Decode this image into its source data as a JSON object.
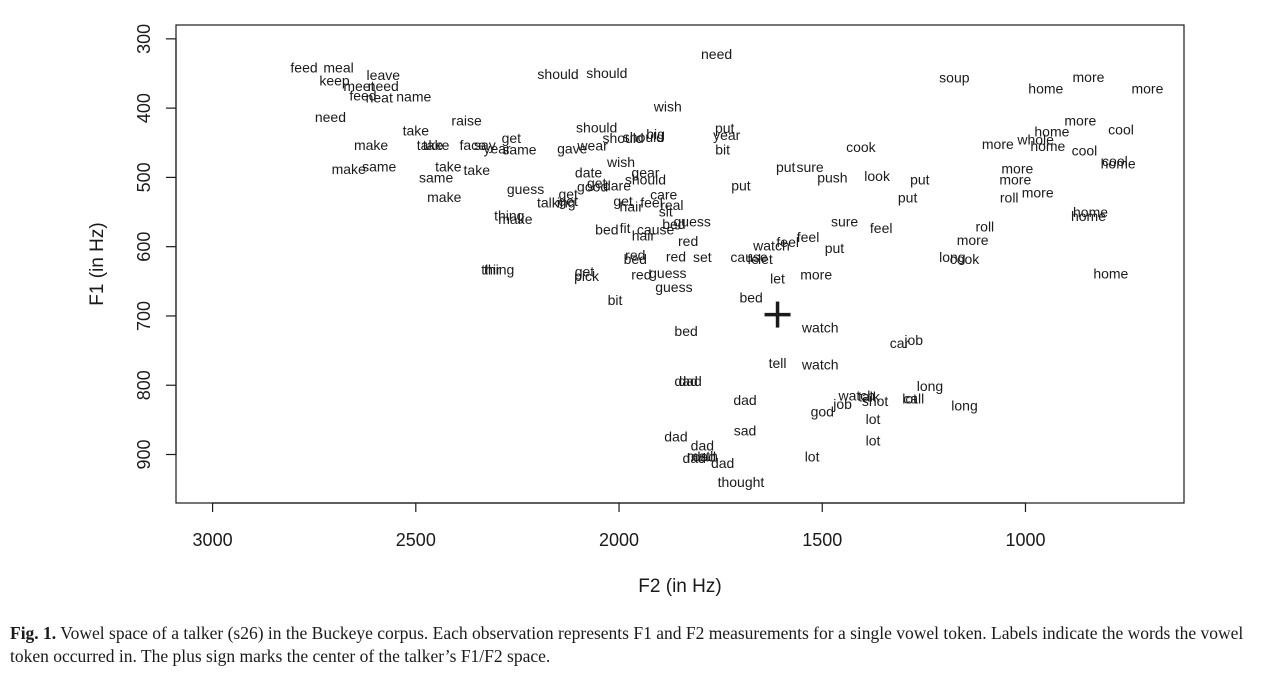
{
  "chart_data": {
    "type": "scatter",
    "xlabel": "F2 (in Hz)",
    "ylabel": "F1 (in Hz)",
    "xlim": [
      3090,
      610
    ],
    "ylim": [
      970,
      280
    ],
    "xticks": [
      3000,
      2500,
      2000,
      1500,
      1000
    ],
    "yticks": [
      300,
      400,
      500,
      600,
      700,
      800,
      900
    ],
    "center": {
      "x": 1610,
      "y": 698,
      "marker": "+"
    },
    "points": [
      {
        "w": "feed",
        "x": 2775,
        "y": 341
      },
      {
        "w": "meal",
        "x": 2690,
        "y": 341
      },
      {
        "w": "leave",
        "x": 2580,
        "y": 352
      },
      {
        "w": "keep",
        "x": 2700,
        "y": 360
      },
      {
        "w": "meet",
        "x": 2640,
        "y": 368
      },
      {
        "w": "need",
        "x": 2580,
        "y": 368
      },
      {
        "w": "feed",
        "x": 2630,
        "y": 382
      },
      {
        "w": "neat",
        "x": 2590,
        "y": 385
      },
      {
        "w": "name",
        "x": 2505,
        "y": 383
      },
      {
        "w": "need",
        "x": 2710,
        "y": 413
      },
      {
        "w": "raise",
        "x": 2375,
        "y": 418
      },
      {
        "w": "should",
        "x": 2150,
        "y": 351
      },
      {
        "w": "should",
        "x": 2030,
        "y": 349
      },
      {
        "w": "need",
        "x": 1760,
        "y": 322
      },
      {
        "w": "soup",
        "x": 1175,
        "y": 356
      },
      {
        "w": "home",
        "x": 950,
        "y": 372
      },
      {
        "w": "more",
        "x": 845,
        "y": 355
      },
      {
        "w": "more",
        "x": 700,
        "y": 372
      },
      {
        "w": "wish",
        "x": 1880,
        "y": 398
      },
      {
        "w": "take",
        "x": 2500,
        "y": 432
      },
      {
        "w": "get",
        "x": 2265,
        "y": 443
      },
      {
        "w": "make",
        "x": 2610,
        "y": 453
      },
      {
        "w": "take",
        "x": 2465,
        "y": 453
      },
      {
        "w": "take",
        "x": 2450,
        "y": 453
      },
      {
        "w": "face",
        "x": 2360,
        "y": 453
      },
      {
        "w": "say",
        "x": 2330,
        "y": 453
      },
      {
        "w": "year",
        "x": 2300,
        "y": 458
      },
      {
        "w": "same",
        "x": 2245,
        "y": 460
      },
      {
        "w": "should",
        "x": 2055,
        "y": 428
      },
      {
        "w": "big",
        "x": 1910,
        "y": 437
      },
      {
        "w": "should",
        "x": 1990,
        "y": 443
      },
      {
        "w": "should",
        "x": 1940,
        "y": 442
      },
      {
        "w": "wear",
        "x": 2065,
        "y": 454
      },
      {
        "w": "gave",
        "x": 2115,
        "y": 458
      },
      {
        "w": "wish",
        "x": 1995,
        "y": 478
      },
      {
        "w": "put",
        "x": 1740,
        "y": 429
      },
      {
        "w": "year",
        "x": 1735,
        "y": 439
      },
      {
        "w": "bit",
        "x": 1745,
        "y": 460
      },
      {
        "w": "cook",
        "x": 1405,
        "y": 456
      },
      {
        "w": "more",
        "x": 1068,
        "y": 452
      },
      {
        "w": "more",
        "x": 865,
        "y": 418
      },
      {
        "w": "cool",
        "x": 765,
        "y": 431
      },
      {
        "w": "home",
        "x": 935,
        "y": 434
      },
      {
        "w": "whole",
        "x": 975,
        "y": 445
      },
      {
        "w": "home",
        "x": 945,
        "y": 455
      },
      {
        "w": "cool",
        "x": 855,
        "y": 461
      },
      {
        "w": "cool",
        "x": 780,
        "y": 476
      },
      {
        "w": "home",
        "x": 772,
        "y": 480
      },
      {
        "w": "make",
        "x": 2665,
        "y": 488
      },
      {
        "w": "same",
        "x": 2590,
        "y": 484
      },
      {
        "w": "take",
        "x": 2420,
        "y": 484
      },
      {
        "w": "take",
        "x": 2350,
        "y": 489
      },
      {
        "w": "same",
        "x": 2450,
        "y": 500
      },
      {
        "w": "make",
        "x": 2430,
        "y": 528
      },
      {
        "w": "guess",
        "x": 2230,
        "y": 517
      },
      {
        "w": "date",
        "x": 2075,
        "y": 493
      },
      {
        "w": "gear",
        "x": 1935,
        "y": 493
      },
      {
        "w": "should",
        "x": 1935,
        "y": 503
      },
      {
        "w": "get",
        "x": 2055,
        "y": 508
      },
      {
        "w": "good",
        "x": 2065,
        "y": 513
      },
      {
        "w": "dare",
        "x": 2005,
        "y": 512
      },
      {
        "w": "care",
        "x": 1890,
        "y": 525
      },
      {
        "w": "put",
        "x": 1590,
        "y": 485
      },
      {
        "w": "sure",
        "x": 1530,
        "y": 485
      },
      {
        "w": "push",
        "x": 1475,
        "y": 500
      },
      {
        "w": "look",
        "x": 1365,
        "y": 498
      },
      {
        "w": "put",
        "x": 1260,
        "y": 503
      },
      {
        "w": "put",
        "x": 1700,
        "y": 512
      },
      {
        "w": "more",
        "x": 1020,
        "y": 487
      },
      {
        "w": "more",
        "x": 1025,
        "y": 503
      },
      {
        "w": "more",
        "x": 970,
        "y": 522
      },
      {
        "w": "roll",
        "x": 1040,
        "y": 529
      },
      {
        "w": "put",
        "x": 1290,
        "y": 529
      },
      {
        "w": "home",
        "x": 840,
        "y": 550
      },
      {
        "w": "home",
        "x": 845,
        "y": 556
      },
      {
        "w": "get",
        "x": 2125,
        "y": 524
      },
      {
        "w": "get",
        "x": 2125,
        "y": 534
      },
      {
        "w": "talk",
        "x": 2175,
        "y": 536
      },
      {
        "w": "ing",
        "x": 2130,
        "y": 536
      },
      {
        "w": "get",
        "x": 1990,
        "y": 534
      },
      {
        "w": "feel",
        "x": 1920,
        "y": 536
      },
      {
        "w": "real",
        "x": 1870,
        "y": 540
      },
      {
        "w": "hair",
        "x": 1970,
        "y": 542
      },
      {
        "w": "sit",
        "x": 1885,
        "y": 549
      },
      {
        "w": "bed",
        "x": 1865,
        "y": 567
      },
      {
        "w": "guess",
        "x": 1820,
        "y": 564
      },
      {
        "w": "thing",
        "x": 2270,
        "y": 555
      },
      {
        "w": "make",
        "x": 2255,
        "y": 560
      },
      {
        "w": "sure",
        "x": 1445,
        "y": 564
      },
      {
        "w": "feel",
        "x": 1355,
        "y": 573
      },
      {
        "w": "roll",
        "x": 1100,
        "y": 571
      },
      {
        "w": "bed",
        "x": 2030,
        "y": 575
      },
      {
        "w": "fit",
        "x": 1985,
        "y": 573
      },
      {
        "w": "cause",
        "x": 1910,
        "y": 575
      },
      {
        "w": "hair",
        "x": 1940,
        "y": 584
      },
      {
        "w": "feel",
        "x": 1535,
        "y": 586
      },
      {
        "w": "feel",
        "x": 1585,
        "y": 593
      },
      {
        "w": "watch",
        "x": 1625,
        "y": 598
      },
      {
        "w": "red",
        "x": 1830,
        "y": 592
      },
      {
        "w": "put",
        "x": 1470,
        "y": 602
      },
      {
        "w": "more",
        "x": 1130,
        "y": 590
      },
      {
        "w": "long",
        "x": 1180,
        "y": 615
      },
      {
        "w": "cook",
        "x": 1150,
        "y": 618
      },
      {
        "w": "home",
        "x": 790,
        "y": 639
      },
      {
        "w": "red",
        "x": 1960,
        "y": 612
      },
      {
        "w": "bed",
        "x": 1960,
        "y": 618
      },
      {
        "w": "red",
        "x": 1860,
        "y": 614
      },
      {
        "w": "set",
        "x": 1795,
        "y": 615
      },
      {
        "w": "cause",
        "x": 1680,
        "y": 615
      },
      {
        "w": "let",
        "x": 1640,
        "y": 618
      },
      {
        "w": "fe",
        "x": 1670,
        "y": 618
      },
      {
        "w": "thing",
        "x": 2295,
        "y": 633
      },
      {
        "w": "thir",
        "x": 2315,
        "y": 633
      },
      {
        "w": "get",
        "x": 2085,
        "y": 636
      },
      {
        "w": "pick",
        "x": 2080,
        "y": 642
      },
      {
        "w": "red",
        "x": 1945,
        "y": 640
      },
      {
        "w": "guess",
        "x": 1880,
        "y": 638
      },
      {
        "w": "guess",
        "x": 1865,
        "y": 658
      },
      {
        "w": "let",
        "x": 1610,
        "y": 646
      },
      {
        "w": "more",
        "x": 1515,
        "y": 640
      },
      {
        "w": "bit",
        "x": 2010,
        "y": 677
      },
      {
        "w": "bed",
        "x": 1675,
        "y": 673
      },
      {
        "w": "bed",
        "x": 1835,
        "y": 722
      },
      {
        "w": "watch",
        "x": 1505,
        "y": 717
      },
      {
        "w": "car",
        "x": 1310,
        "y": 739
      },
      {
        "w": "job",
        "x": 1275,
        "y": 735
      },
      {
        "w": "tell",
        "x": 1610,
        "y": 768
      },
      {
        "w": "watch",
        "x": 1505,
        "y": 770
      },
      {
        "w": "dad",
        "x": 1835,
        "y": 794
      },
      {
        "w": "dad",
        "x": 1825,
        "y": 794
      },
      {
        "w": "long",
        "x": 1235,
        "y": 801
      },
      {
        "w": "dad",
        "x": 1690,
        "y": 821
      },
      {
        "w": "watch",
        "x": 1415,
        "y": 815
      },
      {
        "w": "talk",
        "x": 1385,
        "y": 816
      },
      {
        "w": "lot",
        "x": 1285,
        "y": 819
      },
      {
        "w": "call",
        "x": 1275,
        "y": 819
      },
      {
        "w": "job",
        "x": 1450,
        "y": 827
      },
      {
        "w": "shot",
        "x": 1370,
        "y": 823
      },
      {
        "w": "long",
        "x": 1150,
        "y": 829
      },
      {
        "w": "god",
        "x": 1500,
        "y": 838
      },
      {
        "w": "lot",
        "x": 1375,
        "y": 849
      },
      {
        "w": "sad",
        "x": 1690,
        "y": 865
      },
      {
        "w": "dad",
        "x": 1860,
        "y": 874
      },
      {
        "w": "dad",
        "x": 1795,
        "y": 887
      },
      {
        "w": "lot",
        "x": 1375,
        "y": 880
      },
      {
        "w": "dad",
        "x": 1815,
        "y": 905
      },
      {
        "w": "dad",
        "x": 1790,
        "y": 903
      },
      {
        "w": "math",
        "x": 1795,
        "y": 902
      },
      {
        "w": "dad",
        "x": 1745,
        "y": 912
      },
      {
        "w": "lot",
        "x": 1525,
        "y": 903
      },
      {
        "w": "thought",
        "x": 1700,
        "y": 940
      }
    ]
  },
  "caption": {
    "label": "Fig. 1.",
    "text": "Vowel space of a talker (s26) in the Buckeye corpus. Each observation represents F1 and F2 measurements for a single vowel token. Labels indicate the words the vowel token occurred in. The plus sign marks the center of the talker’s F1/F2 space."
  }
}
